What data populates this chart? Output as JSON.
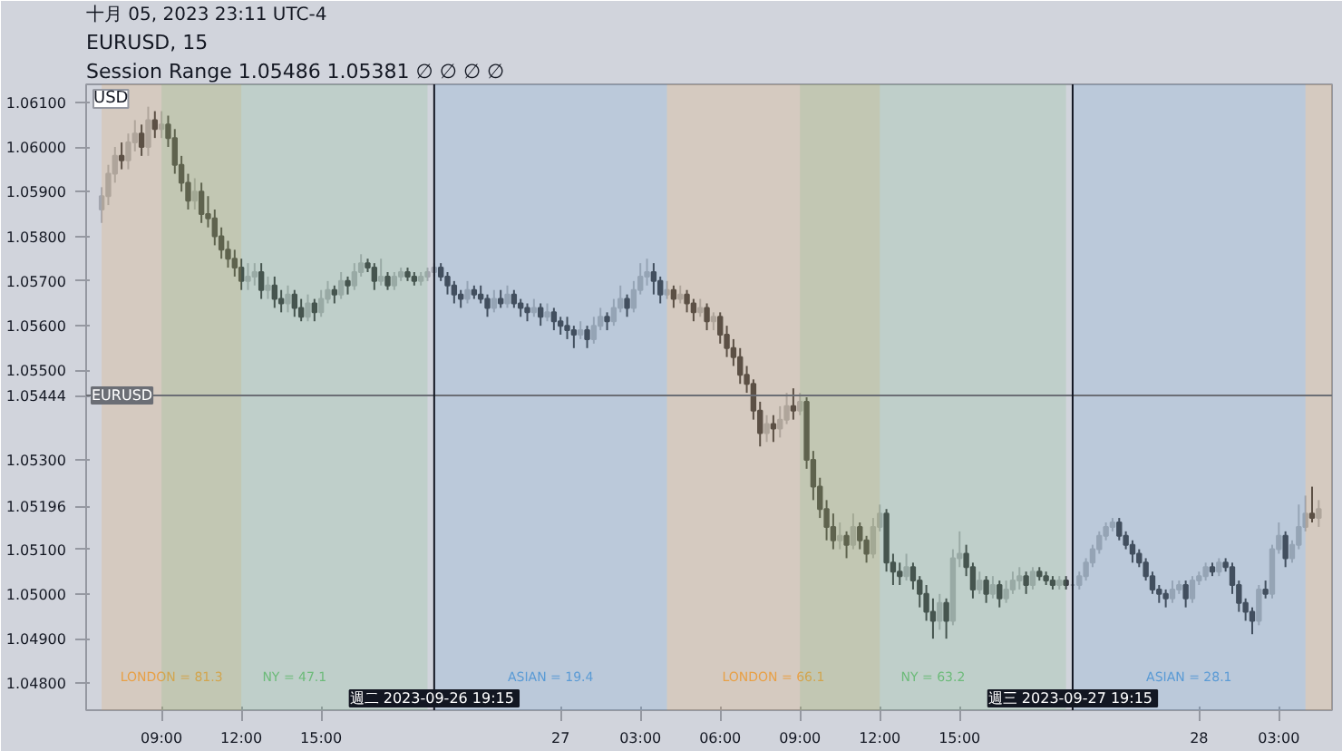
{
  "chart_data": {
    "type": "candlestick",
    "title": "EURUSD, 15",
    "subtitle": "十月 05, 2023 23:11 UTC-4",
    "annotations": [
      "USD",
      "Session Range 1.05486 1.05381 ∅ ∅ ∅ ∅"
    ],
    "xlim": [
      "2023-09-26T06:10",
      "2023-09-28T05:00"
    ],
    "xticks": [
      {
        "value": "2023-09-26T09:00",
        "label": "09:00"
      },
      {
        "value": "2023-09-26T12:00",
        "label": "12:00"
      },
      {
        "value": "2023-09-26T15:00",
        "label": "15:00"
      },
      {
        "value": "2023-09-27T00:00",
        "label": "27"
      },
      {
        "value": "2023-09-27T03:00",
        "label": "03:00"
      },
      {
        "value": "2023-09-27T06:00",
        "label": "06:00"
      },
      {
        "value": "2023-09-27T09:00",
        "label": "09:00"
      },
      {
        "value": "2023-09-27T12:00",
        "label": "12:00"
      },
      {
        "value": "2023-09-27T15:00",
        "label": "15:00"
      },
      {
        "value": "2023-09-28T00:00",
        "label": "28"
      },
      {
        "value": "2023-09-28T03:00",
        "label": "03:00"
      }
    ],
    "ylim": [
      1.0474,
      1.0614
    ],
    "yticks": [
      {
        "value": 1.048,
        "label": "1.04800"
      },
      {
        "value": 1.049,
        "label": "1.04900"
      },
      {
        "value": 1.05,
        "label": "1.05000"
      },
      {
        "value": 1.051,
        "label": "1.05100"
      },
      {
        "value": 1.05196,
        "label": "1.05196"
      },
      {
        "value": 1.053,
        "label": "1.05300"
      },
      {
        "value": 1.05444,
        "label": "1.05444"
      },
      {
        "value": 1.055,
        "label": "1.05500"
      },
      {
        "value": 1.056,
        "label": "1.05600"
      },
      {
        "value": 1.057,
        "label": "1.05700"
      },
      {
        "value": 1.058,
        "label": "1.05800"
      },
      {
        "value": 1.059,
        "label": "1.05900"
      },
      {
        "value": 1.06,
        "label": "1.06000"
      },
      {
        "value": 1.061,
        "label": "1.06100"
      }
    ],
    "grid": false,
    "ref_lines": [
      {
        "axis": "y",
        "value": 1.05444,
        "label": "EURUSD",
        "color": "#6b6e75"
      },
      {
        "axis": "x",
        "value": "2023-09-26T19:15",
        "label": "週二 2023-09-26  19:15",
        "color": "#131722"
      },
      {
        "axis": "x",
        "value": "2023-09-27T19:15",
        "label": "週三 2023-09-27  19:15",
        "color": "#131722"
      }
    ],
    "bands": [
      {
        "axis": "x",
        "from": "2023-09-26T06:45",
        "to": "2023-09-26T12:00",
        "label": "LONDON = 81.3",
        "color": "#e8a045"
      },
      {
        "axis": "x",
        "from": "2023-09-26T09:00",
        "to": "2023-09-26T19:00",
        "label": "NY = 47.1",
        "color": "#6dbb7a"
      },
      {
        "axis": "x",
        "from": "2023-09-26T19:15",
        "to": "2023-09-27T04:00",
        "label": "ASIAN = 19.4",
        "color": "#5b9bd5"
      },
      {
        "axis": "x",
        "from": "2023-09-27T04:00",
        "to": "2023-09-27T12:00",
        "label": "LONDON = 66.1",
        "color": "#e8a045"
      },
      {
        "axis": "x",
        "from": "2023-09-27T09:00",
        "to": "2023-09-27T19:00",
        "label": "NY = 63.2",
        "color": "#6dbb7a"
      },
      {
        "axis": "x",
        "from": "2023-09-27T19:15",
        "to": "2023-09-28T04:00",
        "label": "ASIAN = 28.1",
        "color": "#5b9bd5"
      },
      {
        "axis": "x",
        "from": "2023-09-28T04:00",
        "to": "2023-09-28T05:00",
        "label": null,
        "color": "#e8a045"
      }
    ],
    "x": [
      "2023-09-26T06:45",
      "2023-09-26T07:00",
      "2023-09-26T07:15",
      "2023-09-26T07:30",
      "2023-09-26T07:45",
      "2023-09-26T08:00",
      "2023-09-26T08:15",
      "2023-09-26T08:30",
      "2023-09-26T08:45",
      "2023-09-26T09:00",
      "2023-09-26T09:15",
      "2023-09-26T09:30",
      "2023-09-26T09:45",
      "2023-09-26T10:00",
      "2023-09-26T10:15",
      "2023-09-26T10:30",
      "2023-09-26T10:45",
      "2023-09-26T11:00",
      "2023-09-26T11:15",
      "2023-09-26T11:30",
      "2023-09-26T11:45",
      "2023-09-26T12:00",
      "2023-09-26T12:15",
      "2023-09-26T12:30",
      "2023-09-26T12:45",
      "2023-09-26T13:00",
      "2023-09-26T13:15",
      "2023-09-26T13:30",
      "2023-09-26T13:45",
      "2023-09-26T14:00",
      "2023-09-26T14:15",
      "2023-09-26T14:30",
      "2023-09-26T14:45",
      "2023-09-26T15:00",
      "2023-09-26T15:15",
      "2023-09-26T15:30",
      "2023-09-26T15:45",
      "2023-09-26T16:00",
      "2023-09-26T16:15",
      "2023-09-26T16:30",
      "2023-09-26T16:45",
      "2023-09-26T17:00",
      "2023-09-26T17:15",
      "2023-09-26T17:30",
      "2023-09-26T17:45",
      "2023-09-26T18:00",
      "2023-09-26T18:15",
      "2023-09-26T18:30",
      "2023-09-26T18:45",
      "2023-09-26T19:00",
      "2023-09-26T19:15",
      "2023-09-26T19:30",
      "2023-09-26T19:45",
      "2023-09-26T20:00",
      "2023-09-26T20:15",
      "2023-09-26T20:30",
      "2023-09-26T20:45",
      "2023-09-26T21:00",
      "2023-09-26T21:15",
      "2023-09-26T21:30",
      "2023-09-26T21:45",
      "2023-09-26T22:00",
      "2023-09-26T22:15",
      "2023-09-26T22:30",
      "2023-09-26T22:45",
      "2023-09-26T23:00",
      "2023-09-26T23:15",
      "2023-09-26T23:30",
      "2023-09-26T23:45",
      "2023-09-27T00:00",
      "2023-09-27T00:15",
      "2023-09-27T00:30",
      "2023-09-27T00:45",
      "2023-09-27T01:00",
      "2023-09-27T01:15",
      "2023-09-27T01:30",
      "2023-09-27T01:45",
      "2023-09-27T02:00",
      "2023-09-27T02:15",
      "2023-09-27T02:30",
      "2023-09-27T02:45",
      "2023-09-27T03:00",
      "2023-09-27T03:15",
      "2023-09-27T03:30",
      "2023-09-27T03:45",
      "2023-09-27T04:00",
      "2023-09-27T04:15",
      "2023-09-27T04:30",
      "2023-09-27T04:45",
      "2023-09-27T05:00",
      "2023-09-27T05:15",
      "2023-09-27T05:30",
      "2023-09-27T05:45",
      "2023-09-27T06:00",
      "2023-09-27T06:15",
      "2023-09-27T06:30",
      "2023-09-27T06:45",
      "2023-09-27T07:00",
      "2023-09-27T07:15",
      "2023-09-27T07:30",
      "2023-09-27T07:45",
      "2023-09-27T08:00",
      "2023-09-27T08:15",
      "2023-09-27T08:30",
      "2023-09-27T08:45",
      "2023-09-27T09:00",
      "2023-09-27T09:15",
      "2023-09-27T09:30",
      "2023-09-27T09:45",
      "2023-09-27T10:00",
      "2023-09-27T10:15",
      "2023-09-27T10:30",
      "2023-09-27T10:45",
      "2023-09-27T11:00",
      "2023-09-27T11:15",
      "2023-09-27T11:30",
      "2023-09-27T11:45",
      "2023-09-27T12:00",
      "2023-09-27T12:15",
      "2023-09-27T12:30",
      "2023-09-27T12:45",
      "2023-09-27T13:00",
      "2023-09-27T13:15",
      "2023-09-27T13:30",
      "2023-09-27T13:45",
      "2023-09-27T14:00",
      "2023-09-27T14:15",
      "2023-09-27T14:30",
      "2023-09-27T14:45",
      "2023-09-27T15:00",
      "2023-09-27T15:15",
      "2023-09-27T15:30",
      "2023-09-27T15:45",
      "2023-09-27T16:00",
      "2023-09-27T16:15",
      "2023-09-27T16:30",
      "2023-09-27T16:45",
      "2023-09-27T17:00",
      "2023-09-27T17:15",
      "2023-09-27T17:30",
      "2023-09-27T17:45",
      "2023-09-27T18:00",
      "2023-09-27T18:15",
      "2023-09-27T18:30",
      "2023-09-27T18:45",
      "2023-09-27T19:00",
      "2023-09-27T19:15",
      "2023-09-27T19:30",
      "2023-09-27T19:45",
      "2023-09-27T20:00",
      "2023-09-27T20:15",
      "2023-09-27T20:30",
      "2023-09-27T20:45",
      "2023-09-27T21:00",
      "2023-09-27T21:15",
      "2023-09-27T21:30",
      "2023-09-27T21:45",
      "2023-09-27T22:00",
      "2023-09-27T22:15",
      "2023-09-27T22:30",
      "2023-09-27T22:45",
      "2023-09-27T23:00",
      "2023-09-27T23:15",
      "2023-09-27T23:30",
      "2023-09-27T23:45",
      "2023-09-28T00:00",
      "2023-09-28T00:15",
      "2023-09-28T00:30",
      "2023-09-28T00:45",
      "2023-09-28T01:00",
      "2023-09-28T01:15",
      "2023-09-28T01:30",
      "2023-09-28T01:45",
      "2023-09-28T02:00",
      "2023-09-28T02:15",
      "2023-09-28T02:30",
      "2023-09-28T02:45",
      "2023-09-28T03:00",
      "2023-09-28T03:15",
      "2023-09-28T03:30",
      "2023-09-28T03:45",
      "2023-09-28T04:00",
      "2023-09-28T04:15",
      "2023-09-28T04:30"
    ],
    "ohlc": [
      [
        1.0586,
        1.0591,
        1.0583,
        1.0589
      ],
      [
        1.0589,
        1.0596,
        1.0587,
        1.0594
      ],
      [
        1.0594,
        1.06,
        1.0592,
        1.0598
      ],
      [
        1.0598,
        1.0601,
        1.0595,
        1.0597
      ],
      [
        1.0597,
        1.0603,
        1.0595,
        1.0601
      ],
      [
        1.0601,
        1.0606,
        1.0599,
        1.0603
      ],
      [
        1.0603,
        1.0605,
        1.0598,
        1.06
      ],
      [
        1.06,
        1.0609,
        1.0598,
        1.0606
      ],
      [
        1.0606,
        1.0608,
        1.0602,
        1.0604
      ],
      [
        1.0604,
        1.0608,
        1.0602,
        1.0605
      ],
      [
        1.0605,
        1.0607,
        1.06,
        1.0602
      ],
      [
        1.0602,
        1.0604,
        1.0594,
        1.0596
      ],
      [
        1.0596,
        1.0598,
        1.059,
        1.0592
      ],
      [
        1.0592,
        1.0594,
        1.0586,
        1.0588
      ],
      [
        1.0588,
        1.0593,
        1.0586,
        1.059
      ],
      [
        1.059,
        1.0592,
        1.0583,
        1.0585
      ],
      [
        1.0585,
        1.0589,
        1.0582,
        1.0584
      ],
      [
        1.0584,
        1.0586,
        1.0578,
        1.058
      ],
      [
        1.058,
        1.0582,
        1.0575,
        1.0577
      ],
      [
        1.0577,
        1.0579,
        1.0573,
        1.0575
      ],
      [
        1.0575,
        1.0577,
        1.0571,
        1.0573
      ],
      [
        1.0573,
        1.0575,
        1.0568,
        1.057
      ],
      [
        1.057,
        1.0574,
        1.0568,
        1.0571
      ],
      [
        1.0571,
        1.0574,
        1.0569,
        1.0572
      ],
      [
        1.0572,
        1.0574,
        1.0566,
        1.0568
      ],
      [
        1.0568,
        1.0571,
        1.0566,
        1.0569
      ],
      [
        1.0569,
        1.0571,
        1.0564,
        1.0566
      ],
      [
        1.0566,
        1.0568,
        1.0563,
        1.0565
      ],
      [
        1.0565,
        1.0569,
        1.0563,
        1.0567
      ],
      [
        1.0567,
        1.0568,
        1.0562,
        1.0564
      ],
      [
        1.0564,
        1.0566,
        1.0561,
        1.0562
      ],
      [
        1.0562,
        1.0567,
        1.0561,
        1.0565
      ],
      [
        1.0565,
        1.0566,
        1.0561,
        1.0563
      ],
      [
        1.0563,
        1.0568,
        1.0562,
        1.0566
      ],
      [
        1.0566,
        1.057,
        1.0565,
        1.0568
      ],
      [
        1.0568,
        1.0569,
        1.0565,
        1.0567
      ],
      [
        1.0567,
        1.0572,
        1.0566,
        1.057
      ],
      [
        1.057,
        1.0571,
        1.0567,
        1.0569
      ],
      [
        1.0569,
        1.0574,
        1.0568,
        1.0572
      ],
      [
        1.0572,
        1.0576,
        1.0571,
        1.0574
      ],
      [
        1.0574,
        1.0575,
        1.0572,
        1.0573
      ],
      [
        1.0573,
        1.0574,
        1.0568,
        1.057
      ],
      [
        1.057,
        1.0575,
        1.0569,
        1.0571
      ],
      [
        1.0571,
        1.0572,
        1.0568,
        1.0569
      ],
      [
        1.0569,
        1.0572,
        1.0568,
        1.0571
      ],
      [
        1.0571,
        1.0573,
        1.057,
        1.0572
      ],
      [
        1.0572,
        1.0573,
        1.057,
        1.0571
      ],
      [
        1.0571,
        1.0572,
        1.0569,
        1.057
      ],
      [
        1.057,
        1.0572,
        1.0569,
        1.0571
      ],
      [
        1.0571,
        1.0573,
        1.057,
        1.0572
      ],
      [
        1.0572,
        1.0574,
        1.0571,
        1.0573
      ],
      [
        1.0573,
        1.0574,
        1.057,
        1.0571
      ],
      [
        1.0571,
        1.0572,
        1.0567,
        1.0569
      ],
      [
        1.0569,
        1.057,
        1.0565,
        1.0567
      ],
      [
        1.0567,
        1.0568,
        1.0564,
        1.0566
      ],
      [
        1.0566,
        1.057,
        1.0565,
        1.0568
      ],
      [
        1.0568,
        1.0569,
        1.0566,
        1.0567
      ],
      [
        1.0567,
        1.0569,
        1.0565,
        1.0566
      ],
      [
        1.0566,
        1.0567,
        1.0562,
        1.0564
      ],
      [
        1.0564,
        1.0568,
        1.0563,
        1.0566
      ],
      [
        1.0566,
        1.0568,
        1.0564,
        1.0565
      ],
      [
        1.0565,
        1.0569,
        1.0564,
        1.0567
      ],
      [
        1.0567,
        1.0568,
        1.0564,
        1.0565
      ],
      [
        1.0565,
        1.0566,
        1.0562,
        1.0564
      ],
      [
        1.0564,
        1.0565,
        1.0561,
        1.0563
      ],
      [
        1.0563,
        1.0566,
        1.0562,
        1.0564
      ],
      [
        1.0564,
        1.0565,
        1.056,
        1.0562
      ],
      [
        1.0562,
        1.0565,
        1.0561,
        1.0563
      ],
      [
        1.0563,
        1.0564,
        1.0559,
        1.0561
      ],
      [
        1.0561,
        1.0562,
        1.0558,
        1.056
      ],
      [
        1.056,
        1.0562,
        1.0557,
        1.0559
      ],
      [
        1.0559,
        1.056,
        1.0555,
        1.0558
      ],
      [
        1.0558,
        1.0561,
        1.0557,
        1.0559
      ],
      [
        1.0559,
        1.056,
        1.0555,
        1.0557
      ],
      [
        1.0557,
        1.0562,
        1.0556,
        1.056
      ],
      [
        1.056,
        1.0564,
        1.0559,
        1.0562
      ],
      [
        1.0562,
        1.0563,
        1.0559,
        1.0561
      ],
      [
        1.0561,
        1.0566,
        1.056,
        1.0564
      ],
      [
        1.0564,
        1.0569,
        1.0563,
        1.0566
      ],
      [
        1.0566,
        1.0567,
        1.0562,
        1.0564
      ],
      [
        1.0564,
        1.057,
        1.0563,
        1.0568
      ],
      [
        1.0568,
        1.0574,
        1.0567,
        1.0571
      ],
      [
        1.0571,
        1.0575,
        1.0569,
        1.0572
      ],
      [
        1.0572,
        1.0574,
        1.0567,
        1.057
      ],
      [
        1.057,
        1.0571,
        1.0565,
        1.0567
      ],
      [
        1.0567,
        1.057,
        1.0566,
        1.0568
      ],
      [
        1.0568,
        1.0569,
        1.0564,
        1.0566
      ],
      [
        1.0566,
        1.0569,
        1.0565,
        1.0567
      ],
      [
        1.0567,
        1.0568,
        1.0563,
        1.0565
      ],
      [
        1.0565,
        1.0566,
        1.0561,
        1.0563
      ],
      [
        1.0563,
        1.0566,
        1.0562,
        1.0564
      ],
      [
        1.0564,
        1.0565,
        1.0559,
        1.0561
      ],
      [
        1.0561,
        1.0563,
        1.0559,
        1.0562
      ],
      [
        1.0562,
        1.0563,
        1.0556,
        1.0558
      ],
      [
        1.0558,
        1.056,
        1.0553,
        1.0555
      ],
      [
        1.0555,
        1.0557,
        1.0551,
        1.0553
      ],
      [
        1.0553,
        1.0555,
        1.0547,
        1.0549
      ],
      [
        1.0549,
        1.0551,
        1.0545,
        1.0547
      ],
      [
        1.0547,
        1.0548,
        1.0539,
        1.0541
      ],
      [
        1.0541,
        1.0543,
        1.0533,
        1.0536
      ],
      [
        1.0536,
        1.054,
        1.0534,
        1.0538
      ],
      [
        1.0538,
        1.054,
        1.0534,
        1.0537
      ],
      [
        1.0537,
        1.0542,
        1.0535,
        1.0539
      ],
      [
        1.0539,
        1.0545,
        1.0538,
        1.0542
      ],
      [
        1.0542,
        1.0546,
        1.0539,
        1.0541
      ],
      [
        1.0541,
        1.0545,
        1.054,
        1.0543
      ],
      [
        1.0543,
        1.0544,
        1.0528,
        1.053
      ],
      [
        1.053,
        1.0532,
        1.0521,
        1.0524
      ],
      [
        1.0524,
        1.0526,
        1.0517,
        1.0519
      ],
      [
        1.0519,
        1.0521,
        1.0512,
        1.0515
      ],
      [
        1.0515,
        1.0518,
        1.051,
        1.0512
      ],
      [
        1.0512,
        1.0516,
        1.051,
        1.0513
      ],
      [
        1.0513,
        1.0514,
        1.0508,
        1.0511
      ],
      [
        1.0511,
        1.0518,
        1.051,
        1.0515
      ],
      [
        1.0515,
        1.0516,
        1.051,
        1.0512
      ],
      [
        1.0512,
        1.0513,
        1.0507,
        1.0509
      ],
      [
        1.0509,
        1.0517,
        1.0508,
        1.0515
      ],
      [
        1.0515,
        1.052,
        1.0514,
        1.0518
      ],
      [
        1.0518,
        1.0519,
        1.0505,
        1.0507
      ],
      [
        1.0507,
        1.0509,
        1.0502,
        1.0505
      ],
      [
        1.0505,
        1.0507,
        1.0502,
        1.0504
      ],
      [
        1.0504,
        1.0509,
        1.0503,
        1.0506
      ],
      [
        1.0506,
        1.0507,
        1.0501,
        1.0503
      ],
      [
        1.0503,
        1.0504,
        1.0497,
        1.05
      ],
      [
        1.05,
        1.0502,
        1.0494,
        1.0496
      ],
      [
        1.0496,
        1.0499,
        1.049,
        1.0494
      ],
      [
        1.0494,
        1.05,
        1.0492,
        1.0498
      ],
      [
        1.0498,
        1.0499,
        1.049,
        1.0494
      ],
      [
        1.0494,
        1.051,
        1.0493,
        1.0508
      ],
      [
        1.0508,
        1.0514,
        1.0506,
        1.0509
      ],
      [
        1.0509,
        1.0511,
        1.0504,
        1.0506
      ],
      [
        1.0506,
        1.0507,
        1.0499,
        1.0501
      ],
      [
        1.0501,
        1.0505,
        1.05,
        1.0503
      ],
      [
        1.0503,
        1.0504,
        1.0498,
        1.05
      ],
      [
        1.05,
        1.0504,
        1.0499,
        1.0502
      ],
      [
        1.0502,
        1.0503,
        1.0497,
        1.0499
      ],
      [
        1.0499,
        1.0503,
        1.0498,
        1.0501
      ],
      [
        1.0501,
        1.0505,
        1.05,
        1.0503
      ],
      [
        1.0503,
        1.0506,
        1.0501,
        1.0504
      ],
      [
        1.0504,
        1.0505,
        1.05,
        1.0502
      ],
      [
        1.0502,
        1.0506,
        1.0501,
        1.0505
      ],
      [
        1.0505,
        1.0506,
        1.0503,
        1.0504
      ],
      [
        1.0504,
        1.0505,
        1.0502,
        1.0503
      ],
      [
        1.0503,
        1.0504,
        1.0501,
        1.0502
      ],
      [
        1.0502,
        1.0504,
        1.0501,
        1.0503
      ],
      [
        1.0503,
        1.0504,
        1.0501,
        1.0502
      ],
      [
        1.0502,
        1.0503,
        1.0501,
        1.0502
      ],
      [
        1.0502,
        1.0505,
        1.0501,
        1.0504
      ],
      [
        1.0504,
        1.0508,
        1.0503,
        1.0507
      ],
      [
        1.0507,
        1.0511,
        1.0506,
        1.051
      ],
      [
        1.051,
        1.0514,
        1.0509,
        1.0513
      ],
      [
        1.0513,
        1.0516,
        1.0512,
        1.0515
      ],
      [
        1.0515,
        1.0517,
        1.0514,
        1.0516
      ],
      [
        1.0516,
        1.0517,
        1.0512,
        1.0513
      ],
      [
        1.0513,
        1.0514,
        1.051,
        1.0511
      ],
      [
        1.0511,
        1.0512,
        1.0507,
        1.0509
      ],
      [
        1.0509,
        1.051,
        1.0506,
        1.0507
      ],
      [
        1.0507,
        1.0508,
        1.0503,
        1.0504
      ],
      [
        1.0504,
        1.0505,
        1.05,
        1.0501
      ],
      [
        1.0501,
        1.0502,
        1.0498,
        1.05
      ],
      [
        1.05,
        1.0501,
        1.0497,
        1.0499
      ],
      [
        1.0499,
        1.0503,
        1.0498,
        1.0501
      ],
      [
        1.0501,
        1.0503,
        1.05,
        1.0502
      ],
      [
        1.0502,
        1.0503,
        1.0497,
        1.0499
      ],
      [
        1.0499,
        1.0504,
        1.0498,
        1.0503
      ],
      [
        1.0503,
        1.0505,
        1.0502,
        1.0504
      ],
      [
        1.0504,
        1.0507,
        1.0503,
        1.0506
      ],
      [
        1.0506,
        1.0507,
        1.0504,
        1.0505
      ],
      [
        1.0505,
        1.0508,
        1.0504,
        1.0507
      ],
      [
        1.0507,
        1.0508,
        1.0505,
        1.0506
      ],
      [
        1.0506,
        1.0507,
        1.05,
        1.0502
      ],
      [
        1.0502,
        1.0503,
        1.0496,
        1.0498
      ],
      [
        1.0498,
        1.0499,
        1.0494,
        1.0496
      ],
      [
        1.0496,
        1.0497,
        1.0491,
        1.0494
      ],
      [
        1.0494,
        1.0502,
        1.0493,
        1.0501
      ],
      [
        1.0501,
        1.0503,
        1.0499,
        1.05
      ],
      [
        1.05,
        1.0511,
        1.0499,
        1.051
      ],
      [
        1.051,
        1.0516,
        1.0509,
        1.0513
      ],
      [
        1.0513,
        1.0514,
        1.0506,
        1.0508
      ],
      [
        1.0508,
        1.0512,
        1.0507,
        1.0511
      ],
      [
        1.0511,
        1.052,
        1.051,
        1.0515
      ],
      [
        1.0515,
        1.0522,
        1.0514,
        1.0518
      ],
      [
        1.0518,
        1.0524,
        1.0516,
        1.0517
      ],
      [
        1.0517,
        1.0521,
        1.0515,
        1.0519
      ]
    ]
  }
}
